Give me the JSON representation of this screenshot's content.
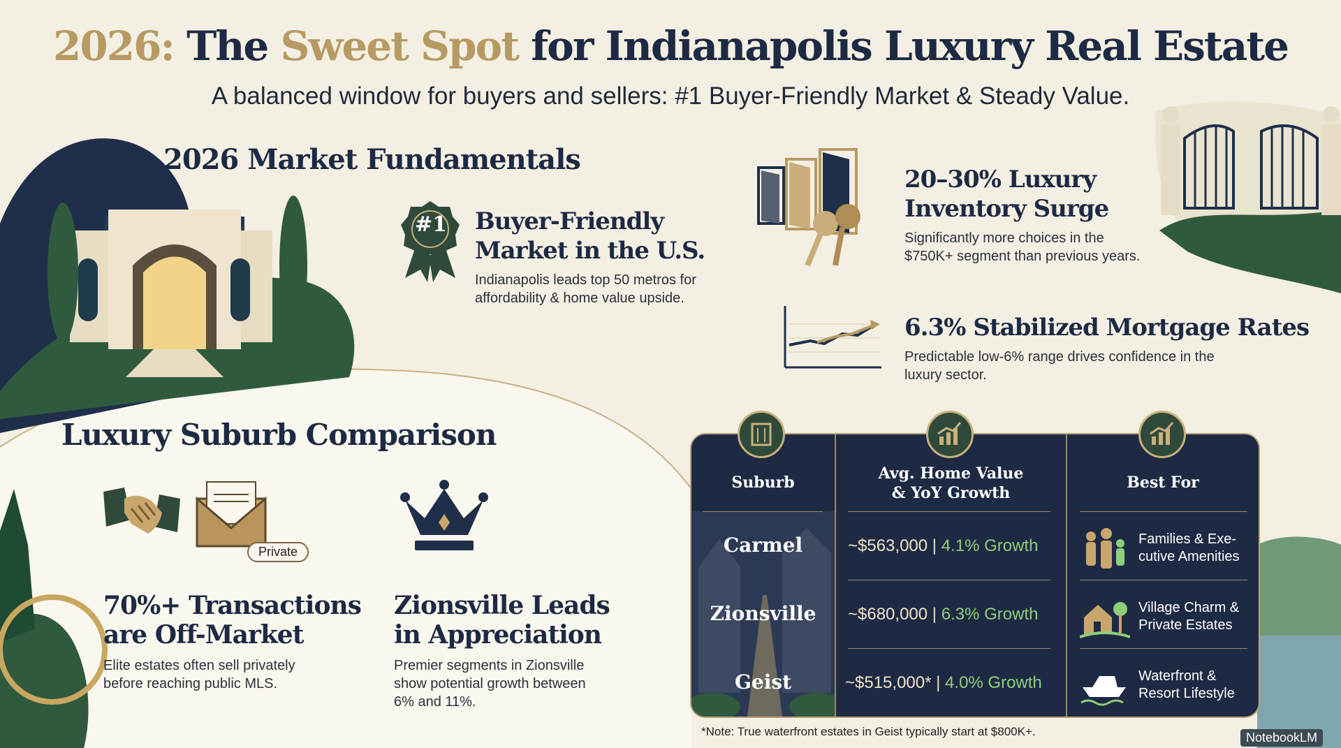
{
  "header": {
    "title_year": "2026:",
    "title_the": "The",
    "title_highlight": "Sweet Spot",
    "title_rest": "for Indianapolis Luxury Real Estate",
    "subtitle": "A balanced window for buyers and sellers: #1 Buyer-Friendly Market & Steady Value."
  },
  "fundamentals": {
    "heading": "2026 Market Fundamentals",
    "buyer": {
      "badge": "#1",
      "title_line1": "Buyer-Friendly",
      "title_line2": "Market in the U.S.",
      "desc_line1": "Indianapolis leads top 50 metros for",
      "desc_line2": "affordability & home value upside."
    },
    "inventory": {
      "title_line1": "20–30% Luxury",
      "title_line2": "Inventory Surge",
      "desc_line1": "Significantly more choices in the",
      "desc_line2": "$750K+ segment than previous years."
    },
    "mortgage": {
      "title": "6.3% Stabilized Mortgage Rates",
      "desc_line1": "Predictable low-6% range drives confidence in the",
      "desc_line2": "luxury sector."
    }
  },
  "comparison": {
    "heading": "Luxury Suburb Comparison",
    "private_tag": "Private",
    "offmarket": {
      "title_line1": "70%+ Transactions",
      "title_line2": "are Off-Market",
      "desc_line1": "Elite estates often sell privately",
      "desc_line2": "before reaching public MLS."
    },
    "zionsville": {
      "title_line1": "Zionsville Leads",
      "title_line2": "in Appreciation",
      "desc_line1": "Premier segments in Zionsville",
      "desc_line2": "show potential growth between",
      "desc_line3": "6% and 11%."
    }
  },
  "table": {
    "col_suburb": "Suburb",
    "col_value_line1": "Avg. Home Value",
    "col_value_line2": "& YoY Growth",
    "col_best": "Best For",
    "rows": [
      {
        "suburb": "Carmel",
        "value": "~$563,000",
        "growth": "4.1% Growth",
        "best_line1": "Families & Exe-",
        "best_line2": "cutive Amenities"
      },
      {
        "suburb": "Zionsville",
        "value": "~$680,000",
        "growth": "6.3% Growth",
        "best_line1": "Village Charm &",
        "best_line2": "Private Estates"
      },
      {
        "suburb": "Geist",
        "value": "~$515,000*",
        "growth": "4.0% Growth",
        "best_line1": "Waterfront &",
        "best_line2": "Resort Lifestyle"
      }
    ]
  },
  "footer": {
    "note": "*Note: True waterfront estates in Geist typically start at $800K+.",
    "brand": "NotebookLM"
  },
  "colors": {
    "navy": "#1d2a44",
    "gold": "#b79a63",
    "green": "#2f5a3e",
    "background": "#f4efe3",
    "growth_green": "#8fcf7a"
  },
  "icons": [
    "ribbon-badge-icon",
    "doors-keys-icon",
    "line-chart-icon",
    "handshake-icon",
    "envelope-icon",
    "crown-icon",
    "building-icon",
    "growth-chart-icon",
    "family-icon",
    "village-icon",
    "boat-icon"
  ]
}
